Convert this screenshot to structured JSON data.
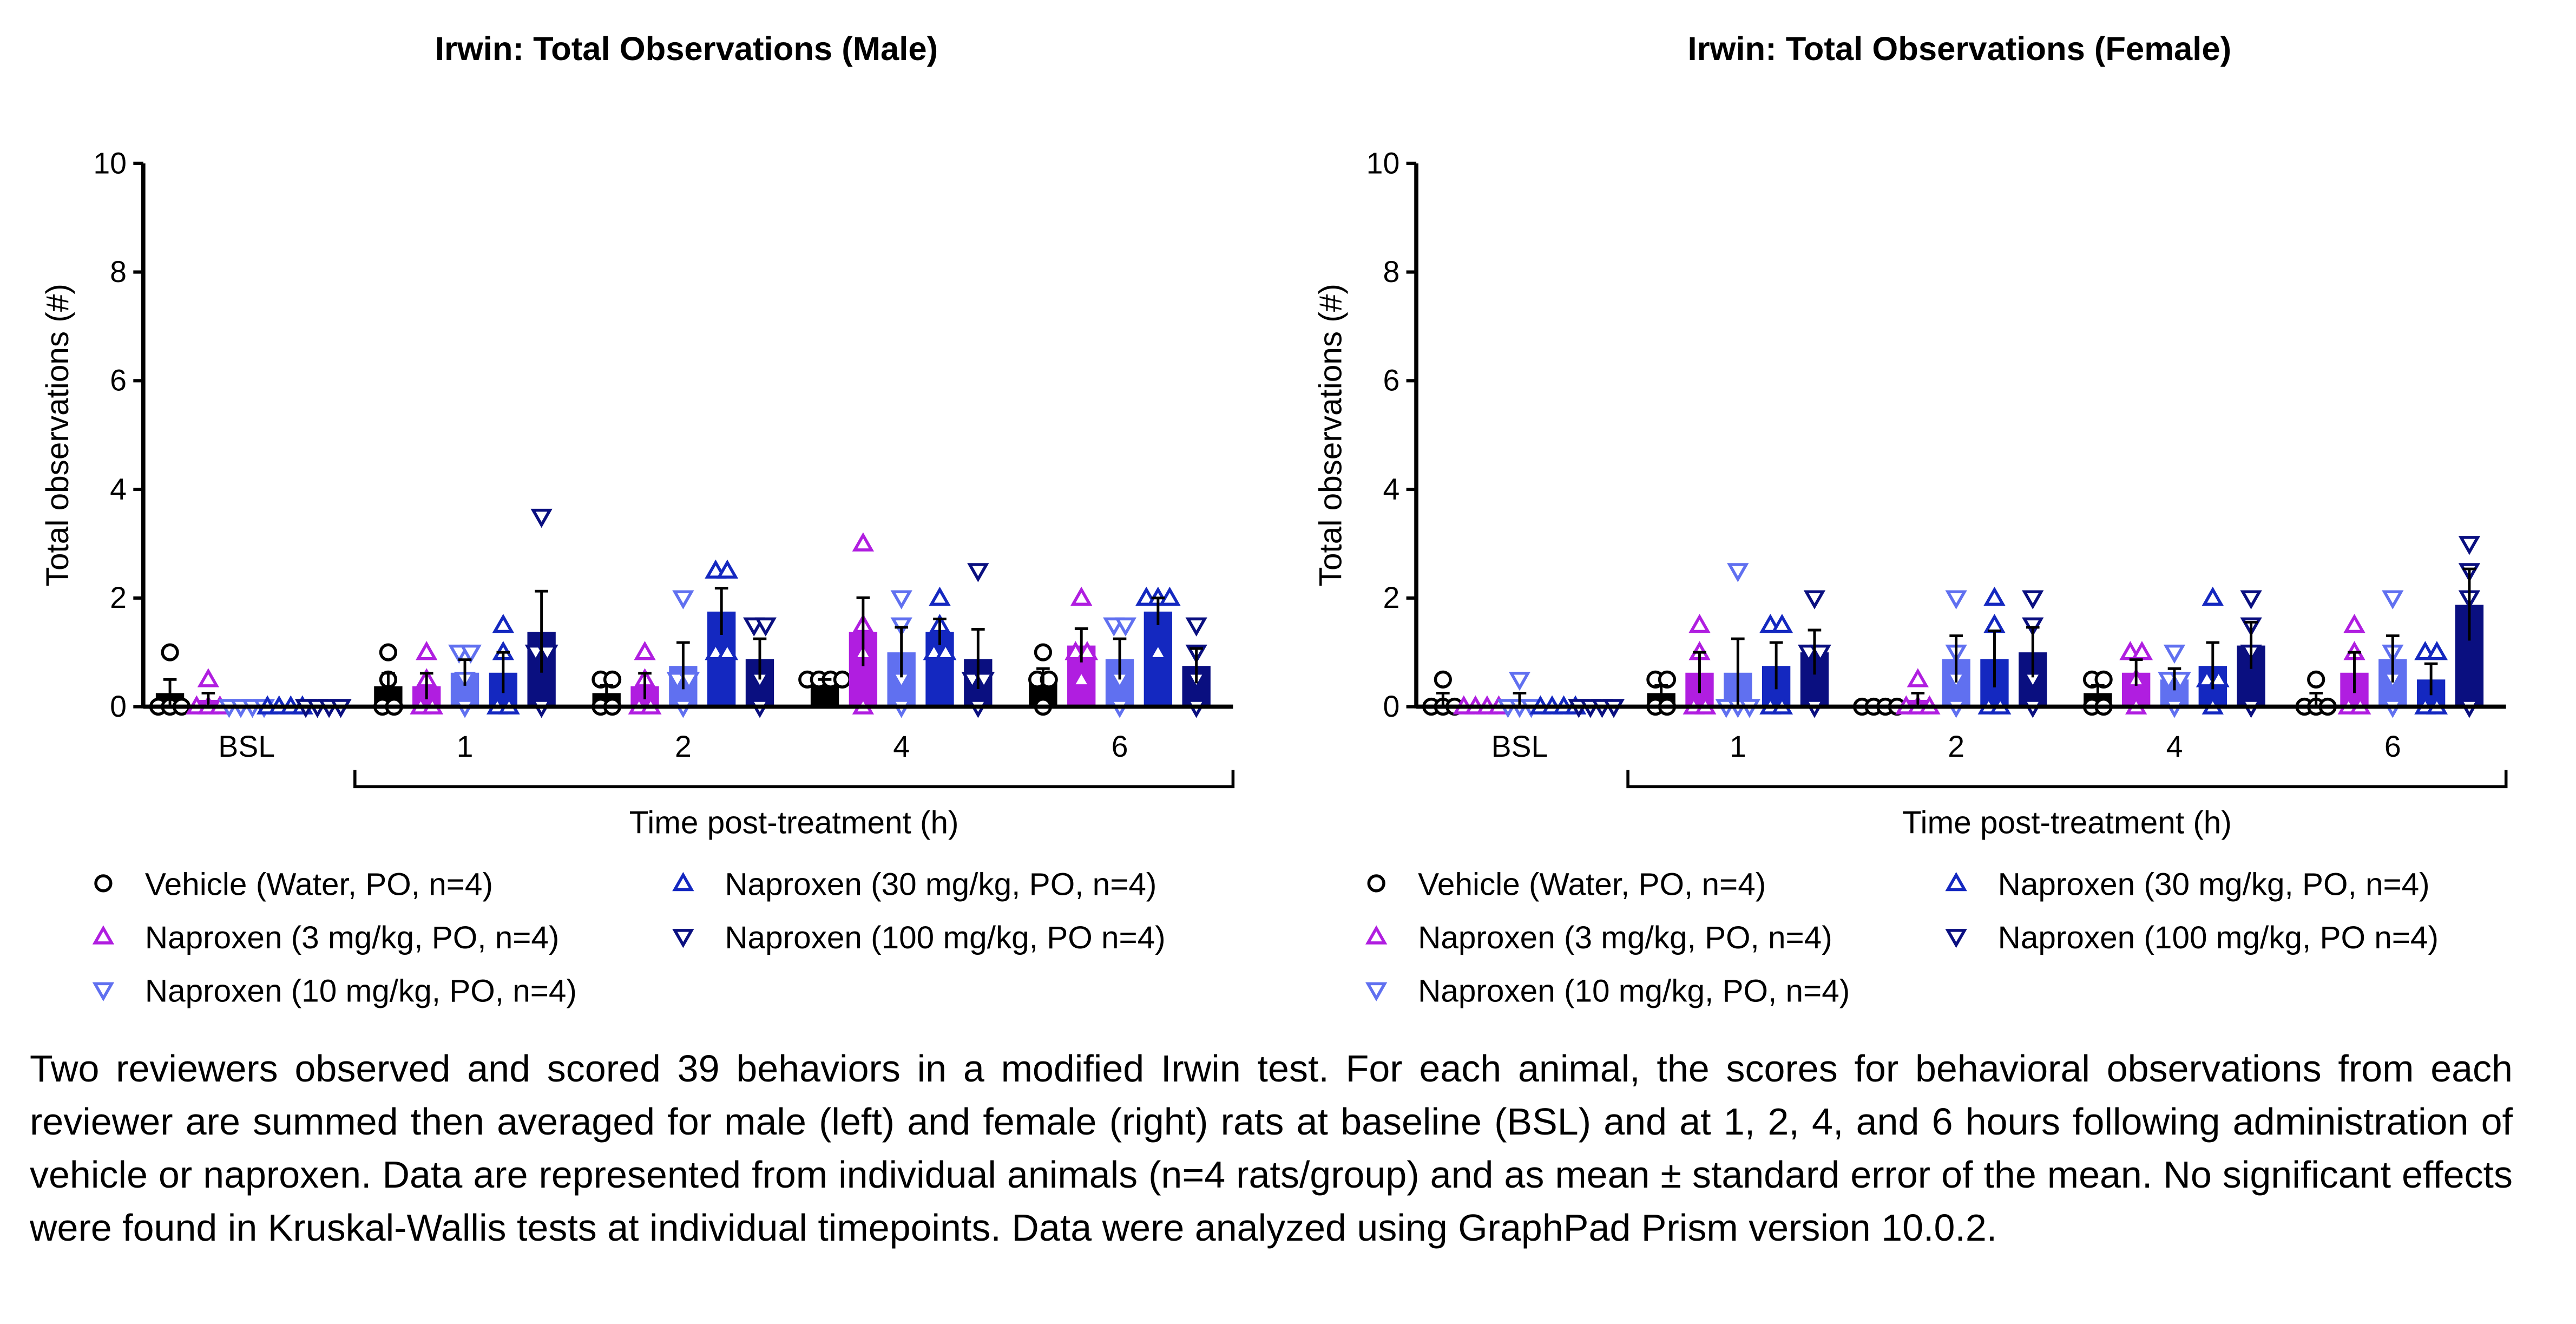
{
  "chart_data": [
    {
      "type": "bar",
      "title": "Irwin: Total Observations (Male)",
      "ylabel": "Total observations (#)",
      "xlabel": "Time post-treatment (h)",
      "categories": [
        "BSL",
        "1",
        "2",
        "4",
        "6"
      ],
      "ylim": [
        0,
        10
      ],
      "yticks": [
        0,
        2,
        4,
        6,
        8,
        10
      ],
      "series": [
        {
          "name": "Vehicle (Water, PO, n=4)",
          "color": "#000000",
          "marker": "circle",
          "values": [
            0.25,
            0.375,
            0.25,
            0.5,
            0.5
          ],
          "errors": [
            0.25,
            0.24,
            0.14,
            0,
            0.2
          ],
          "points": [
            [
              1,
              0,
              0,
              0
            ],
            [
              1,
              0.5,
              0,
              0
            ],
            [
              0.5,
              0.5,
              0,
              0
            ],
            [
              0.5,
              0.5,
              0.5,
              0.5
            ],
            [
              1,
              0.5,
              0.5,
              0
            ]
          ]
        },
        {
          "name": "Naproxen (3 mg/kg, PO, n=4)",
          "color": "#b01ee0",
          "marker": "up",
          "values": [
            0.125,
            0.375,
            0.375,
            1.375,
            1.125
          ],
          "errors": [
            0.125,
            0.24,
            0.24,
            0.63,
            0.31
          ],
          "points": [
            [
              0.5,
              0,
              0,
              0
            ],
            [
              1,
              0.5,
              0,
              0
            ],
            [
              1,
              0.5,
              0,
              0
            ],
            [
              3,
              1.5,
              1,
              0
            ],
            [
              2,
              1,
              1,
              0.5
            ]
          ]
        },
        {
          "name": "Naproxen (10 mg/kg, PO, n=4)",
          "color": "#6070f0",
          "marker": "down",
          "values": [
            0,
            0.625,
            0.75,
            1,
            0.875
          ],
          "errors": [
            0,
            0.24,
            0.43,
            0.46,
            0.375
          ],
          "points": [
            [
              0,
              0,
              0,
              0
            ],
            [
              1,
              1,
              0.5,
              0
            ],
            [
              2,
              0.5,
              0.5,
              0
            ],
            [
              2,
              1.5,
              0.5,
              0
            ],
            [
              1.5,
              1.5,
              0.5,
              0
            ]
          ]
        },
        {
          "name": "Naproxen (30 mg/kg, PO, n=4)",
          "color": "#1428c0",
          "marker": "up",
          "values": [
            0,
            0.625,
            1.75,
            1.375,
            1.75
          ],
          "errors": [
            0,
            0.375,
            0.43,
            0.24,
            0.25
          ],
          "points": [
            [
              0,
              0,
              0,
              0
            ],
            [
              1.5,
              1,
              0,
              0
            ],
            [
              2.5,
              2.5,
              1,
              1
            ],
            [
              2,
              1.5,
              1,
              1
            ],
            [
              2,
              2,
              2,
              1
            ]
          ]
        },
        {
          "name": "Naproxen (100 mg/kg, PO n=4)",
          "color": "#0a0f80",
          "marker": "down",
          "values": [
            0,
            1.375,
            0.875,
            0.875,
            0.75
          ],
          "errors": [
            0,
            0.75,
            0.375,
            0.55,
            0.32
          ],
          "points": [
            [
              0,
              0,
              0,
              0
            ],
            [
              3.5,
              1,
              1,
              0
            ],
            [
              1.5,
              1.5,
              0.5,
              0
            ],
            [
              2.5,
              0.5,
              0.5,
              0
            ],
            [
              1.5,
              1,
              0.5,
              0
            ]
          ]
        }
      ]
    },
    {
      "type": "bar",
      "title": "Irwin: Total Observations (Female)",
      "ylabel": "Total observations (#)",
      "xlabel": "Time post-treatment (h)",
      "categories": [
        "BSL",
        "1",
        "2",
        "4",
        "6"
      ],
      "ylim": [
        0,
        10
      ],
      "yticks": [
        0,
        2,
        4,
        6,
        8,
        10
      ],
      "series": [
        {
          "name": "Vehicle (Water, PO, n=4)",
          "color": "#000000",
          "marker": "circle",
          "values": [
            0.125,
            0.25,
            0,
            0.25,
            0.125
          ],
          "errors": [
            0.125,
            0.14,
            0,
            0.14,
            0.125
          ],
          "points": [
            [
              0.5,
              0,
              0,
              0
            ],
            [
              0.5,
              0.5,
              0,
              0
            ],
            [
              0,
              0,
              0,
              0
            ],
            [
              0.5,
              0.5,
              0,
              0
            ],
            [
              0.5,
              0,
              0,
              0
            ]
          ]
        },
        {
          "name": "Naproxen (3 mg/kg, PO, n=4)",
          "color": "#b01ee0",
          "marker": "up",
          "values": [
            0,
            0.625,
            0.125,
            0.625,
            0.625
          ],
          "errors": [
            0,
            0.375,
            0.125,
            0.24,
            0.375
          ],
          "points": [
            [
              0,
              0,
              0,
              0
            ],
            [
              1.5,
              1,
              0,
              0
            ],
            [
              0.5,
              0,
              0,
              0
            ],
            [
              1,
              1,
              0.5,
              0
            ],
            [
              1.5,
              1,
              0,
              0
            ]
          ]
        },
        {
          "name": "Naproxen (10 mg/kg, PO, n=4)",
          "color": "#6070f0",
          "marker": "down",
          "values": [
            0.125,
            0.625,
            0.875,
            0.5,
            0.875
          ],
          "errors": [
            0.125,
            0.625,
            0.43,
            0.2,
            0.43
          ],
          "points": [
            [
              0.5,
              0,
              0,
              0
            ],
            [
              2.5,
              0,
              0,
              0
            ],
            [
              2,
              1,
              0.5,
              0
            ],
            [
              1,
              0.5,
              0.5,
              0
            ],
            [
              2,
              1,
              0.5,
              0
            ]
          ]
        },
        {
          "name": "Naproxen (30 mg/kg, PO, n=4)",
          "color": "#1428c0",
          "marker": "up",
          "values": [
            0,
            0.75,
            0.875,
            0.75,
            0.5
          ],
          "errors": [
            0,
            0.43,
            0.52,
            0.43,
            0.29
          ],
          "points": [
            [
              0,
              0,
              0,
              0
            ],
            [
              1.5,
              1.5,
              0,
              0
            ],
            [
              2,
              1.5,
              0,
              0
            ],
            [
              2,
              0.5,
              0.5,
              0
            ],
            [
              1,
              1,
              0,
              0
            ]
          ]
        },
        {
          "name": "Naproxen (100 mg/kg, PO n=4)",
          "color": "#0a0f80",
          "marker": "down",
          "values": [
            0,
            1,
            1,
            1.125,
            1.875
          ],
          "errors": [
            0,
            0.41,
            0.46,
            0.43,
            0.66
          ],
          "points": [
            [
              0,
              0,
              0,
              0
            ],
            [
              2,
              1,
              1,
              0
            ],
            [
              2,
              1.5,
              0.5,
              0
            ],
            [
              2,
              1.5,
              1,
              0
            ],
            [
              3,
              2.5,
              2,
              0
            ]
          ]
        }
      ]
    }
  ],
  "caption": "Two reviewers observed and scored 39 behaviors in a modified Irwin test. For each animal, the scores for behavioral observations from each reviewer are summed then averaged for male (left) and female (right) rats at baseline (BSL) and at 1, 2, 4, and 6 hours following administration of vehicle or naproxen. Data are represented from individual animals (n=4 rats/group) and as mean ± standard error of the mean. No significant effects were found in Kruskal-Wallis tests at individual timepoints. Data were analyzed using GraphPad Prism version 10.0.2."
}
